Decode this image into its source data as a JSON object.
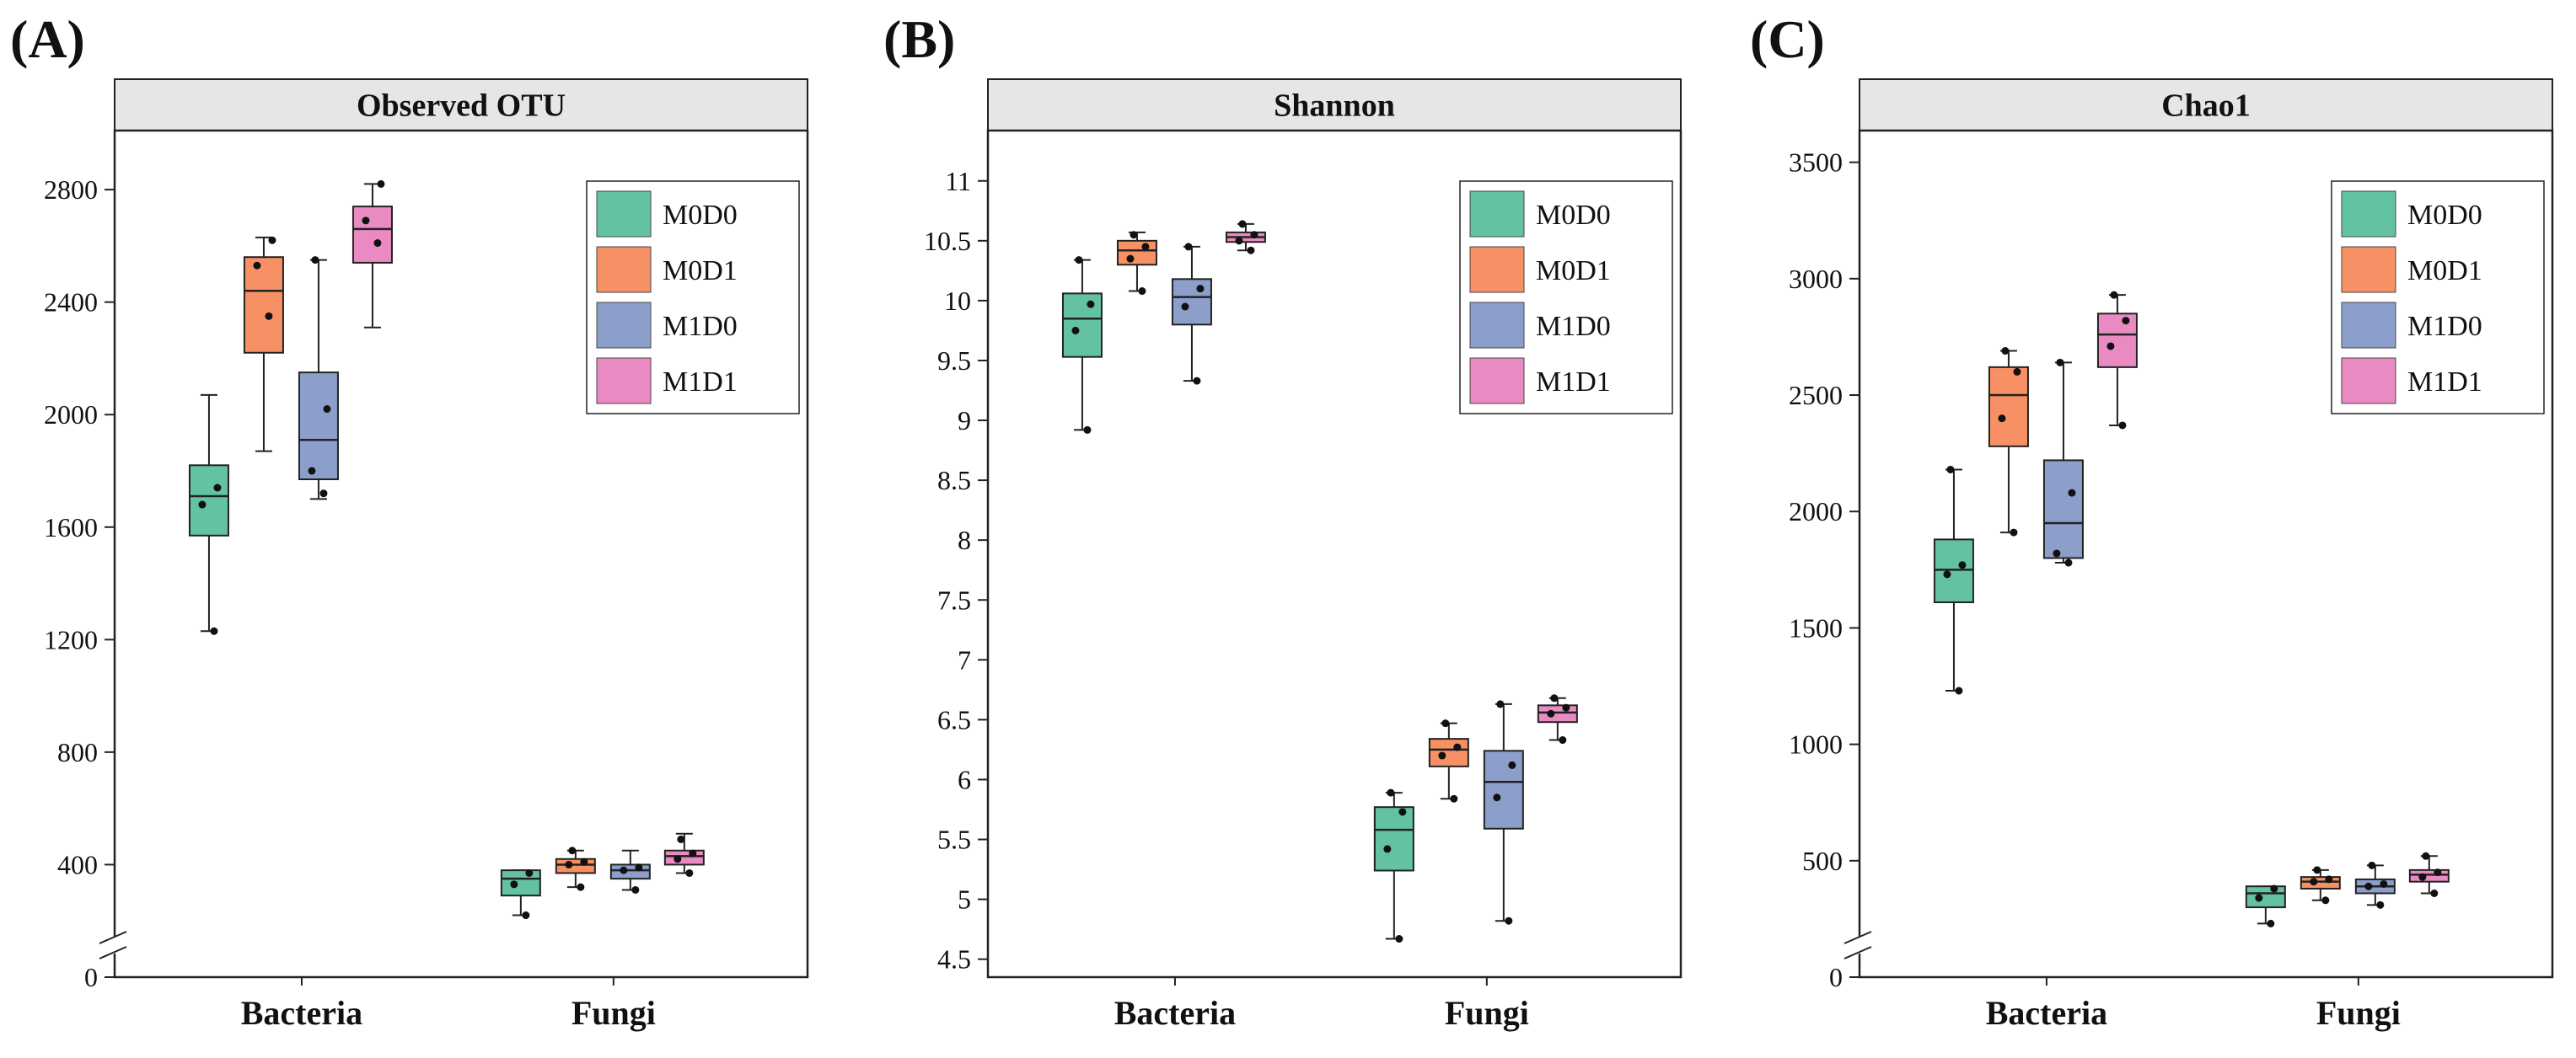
{
  "colors": {
    "M0D0": "#63c3a0",
    "M0D1": "#f79064",
    "M1D0": "#8c9fcb",
    "M1D1": "#e98bc2",
    "strip": "#e6e6e6"
  },
  "chart_data": [
    {
      "type": "box",
      "panel_label": "(A)",
      "title": "Observed OTU",
      "categories": [
        "Bacteria",
        "Fungi"
      ],
      "groups": [
        "M0D0",
        "M0D1",
        "M1D0",
        "M1D1"
      ],
      "y_ticks": [
        0,
        400,
        800,
        1200,
        1600,
        2000,
        2400,
        2800
      ],
      "y_tick_labels": [
        "0",
        "400",
        "800",
        "1200",
        "1600",
        "2000",
        "2400",
        "2800"
      ],
      "ylim": [
        0,
        2980
      ],
      "axis_break": true,
      "legend_position": "top-right",
      "series": [
        {
          "category": "Bacteria",
          "group": "M0D0",
          "min": 1230,
          "q1": 1570,
          "median": 1710,
          "q3": 1820,
          "max": 2070,
          "points": [
            1230,
            1680,
            1740
          ]
        },
        {
          "category": "Bacteria",
          "group": "M0D1",
          "min": 1870,
          "q1": 2220,
          "median": 2440,
          "q3": 2560,
          "max": 2630,
          "points": [
            2350,
            2530,
            2620
          ]
        },
        {
          "category": "Bacteria",
          "group": "M1D0",
          "min": 1700,
          "q1": 1770,
          "median": 1910,
          "q3": 2150,
          "max": 2550,
          "points": [
            1720,
            1800,
            2020,
            2550
          ]
        },
        {
          "category": "Bacteria",
          "group": "M1D1",
          "min": 2310,
          "q1": 2540,
          "median": 2660,
          "q3": 2740,
          "max": 2820,
          "points": [
            2610,
            2690,
            2820
          ]
        },
        {
          "category": "Fungi",
          "group": "M0D0",
          "min": 220,
          "q1": 290,
          "median": 350,
          "q3": 380,
          "max": 380,
          "points": [
            220,
            330,
            370
          ]
        },
        {
          "category": "Fungi",
          "group": "M0D1",
          "min": 320,
          "q1": 370,
          "median": 400,
          "q3": 420,
          "max": 450,
          "points": [
            320,
            400,
            410,
            450
          ]
        },
        {
          "category": "Fungi",
          "group": "M1D0",
          "min": 310,
          "q1": 350,
          "median": 380,
          "q3": 400,
          "max": 450,
          "points": [
            310,
            380,
            390
          ]
        },
        {
          "category": "Fungi",
          "group": "M1D1",
          "min": 370,
          "q1": 400,
          "median": 430,
          "q3": 450,
          "max": 510,
          "points": [
            370,
            420,
            440,
            490
          ]
        }
      ]
    },
    {
      "type": "box",
      "panel_label": "(B)",
      "title": "Shannon",
      "categories": [
        "Bacteria",
        "Fungi"
      ],
      "groups": [
        "M0D0",
        "M0D1",
        "M1D0",
        "M1D1"
      ],
      "y_ticks": [
        4.5,
        5,
        5.5,
        6,
        6.5,
        7,
        7.5,
        8,
        8.5,
        9,
        9.5,
        10,
        10.5,
        11
      ],
      "y_tick_labels": [
        "4.5",
        "5",
        "5.5",
        "6",
        "6.5",
        "7",
        "7.5",
        "8",
        "8.5",
        "9",
        "9.5",
        "10",
        "10.5",
        "11"
      ],
      "ylim": [
        4.35,
        11.35
      ],
      "axis_break": false,
      "legend_position": "top-right",
      "series": [
        {
          "category": "Bacteria",
          "group": "M0D0",
          "min": 8.92,
          "q1": 9.53,
          "median": 9.85,
          "q3": 10.06,
          "max": 10.34,
          "points": [
            8.92,
            9.75,
            9.97,
            10.34
          ]
        },
        {
          "category": "Bacteria",
          "group": "M0D1",
          "min": 10.08,
          "q1": 10.3,
          "median": 10.42,
          "q3": 10.5,
          "max": 10.57,
          "points": [
            10.08,
            10.35,
            10.45,
            10.55
          ]
        },
        {
          "category": "Bacteria",
          "group": "M1D0",
          "min": 9.33,
          "q1": 9.8,
          "median": 10.03,
          "q3": 10.18,
          "max": 10.45,
          "points": [
            9.33,
            9.95,
            10.1,
            10.45
          ]
        },
        {
          "category": "Bacteria",
          "group": "M1D1",
          "min": 10.42,
          "q1": 10.49,
          "median": 10.53,
          "q3": 10.57,
          "max": 10.64,
          "points": [
            10.42,
            10.5,
            10.55,
            10.64
          ]
        },
        {
          "category": "Fungi",
          "group": "M0D0",
          "min": 4.67,
          "q1": 5.24,
          "median": 5.58,
          "q3": 5.77,
          "max": 5.89,
          "points": [
            4.67,
            5.42,
            5.73,
            5.89
          ]
        },
        {
          "category": "Fungi",
          "group": "M0D1",
          "min": 5.84,
          "q1": 6.11,
          "median": 6.25,
          "q3": 6.34,
          "max": 6.47,
          "points": [
            5.84,
            6.2,
            6.27,
            6.47
          ]
        },
        {
          "category": "Fungi",
          "group": "M1D0",
          "min": 4.82,
          "q1": 5.59,
          "median": 5.98,
          "q3": 6.24,
          "max": 6.63,
          "points": [
            4.82,
            5.85,
            6.12,
            6.63
          ]
        },
        {
          "category": "Fungi",
          "group": "M1D1",
          "min": 6.33,
          "q1": 6.48,
          "median": 6.56,
          "q3": 6.62,
          "max": 6.68,
          "points": [
            6.33,
            6.55,
            6.6,
            6.68
          ]
        }
      ]
    },
    {
      "type": "box",
      "panel_label": "(C)",
      "title": "Chao1",
      "categories": [
        "Bacteria",
        "Fungi"
      ],
      "groups": [
        "M0D0",
        "M0D1",
        "M1D0",
        "M1D1"
      ],
      "y_ticks": [
        0,
        500,
        1000,
        1500,
        2000,
        2500,
        3000,
        3500
      ],
      "y_tick_labels": [
        "0",
        "500",
        "1000",
        "1500",
        "2000",
        "2500",
        "3000",
        "3500"
      ],
      "ylim": [
        0,
        3600
      ],
      "axis_break": true,
      "legend_position": "top-right",
      "series": [
        {
          "category": "Bacteria",
          "group": "M0D0",
          "min": 1230,
          "q1": 1610,
          "median": 1750,
          "q3": 1880,
          "max": 2180,
          "points": [
            1230,
            1730,
            1770,
            2180
          ]
        },
        {
          "category": "Bacteria",
          "group": "M0D1",
          "min": 1910,
          "q1": 2280,
          "median": 2500,
          "q3": 2620,
          "max": 2690,
          "points": [
            1910,
            2400,
            2600,
            2690
          ]
        },
        {
          "category": "Bacteria",
          "group": "M1D0",
          "min": 1780,
          "q1": 1800,
          "median": 1950,
          "q3": 2220,
          "max": 2640,
          "points": [
            1780,
            1820,
            2080,
            2640
          ]
        },
        {
          "category": "Bacteria",
          "group": "M1D1",
          "min": 2370,
          "q1": 2620,
          "median": 2760,
          "q3": 2850,
          "max": 2930,
          "points": [
            2370,
            2710,
            2820,
            2930
          ]
        },
        {
          "category": "Fungi",
          "group": "M0D0",
          "min": 230,
          "q1": 300,
          "median": 360,
          "q3": 390,
          "max": 390,
          "points": [
            230,
            340,
            380
          ]
        },
        {
          "category": "Fungi",
          "group": "M0D1",
          "min": 330,
          "q1": 380,
          "median": 410,
          "q3": 430,
          "max": 460,
          "points": [
            330,
            410,
            420,
            460
          ]
        },
        {
          "category": "Fungi",
          "group": "M1D0",
          "min": 310,
          "q1": 360,
          "median": 390,
          "q3": 420,
          "max": 480,
          "points": [
            310,
            390,
            400,
            480
          ]
        },
        {
          "category": "Fungi",
          "group": "M1D1",
          "min": 360,
          "q1": 410,
          "median": 440,
          "q3": 460,
          "max": 520,
          "points": [
            360,
            430,
            450,
            520
          ]
        }
      ]
    }
  ]
}
